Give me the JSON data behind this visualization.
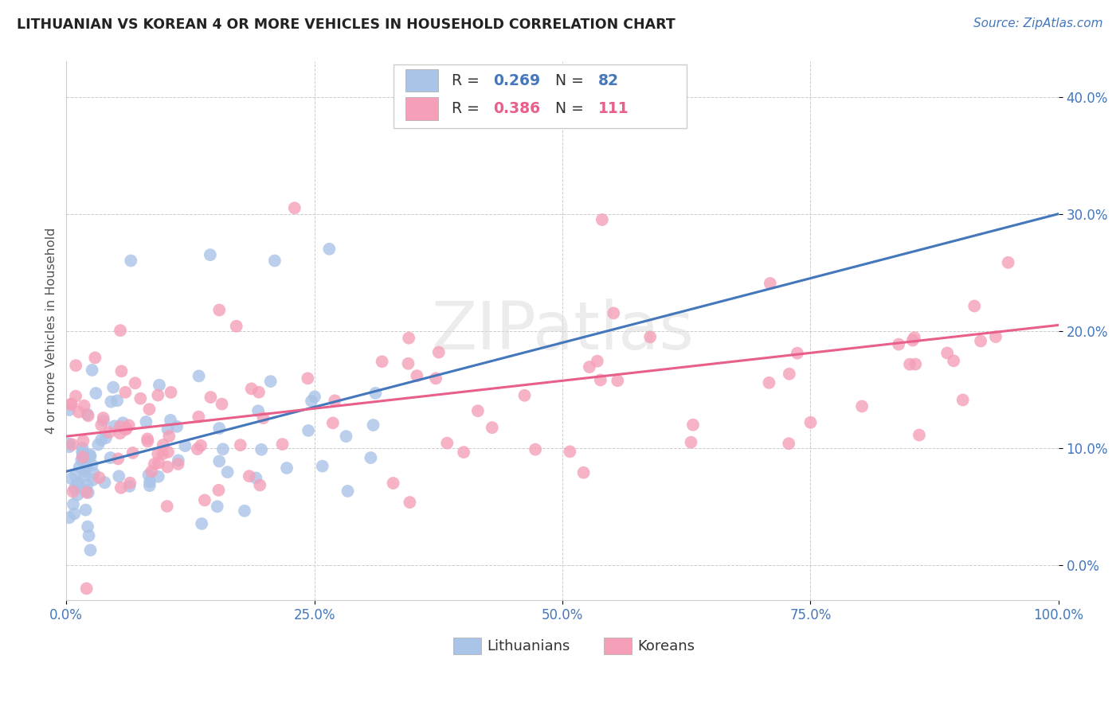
{
  "title": "LITHUANIAN VS KOREAN 4 OR MORE VEHICLES IN HOUSEHOLD CORRELATION CHART",
  "source": "Source: ZipAtlas.com",
  "ylabel": "4 or more Vehicles in Household",
  "xlim": [
    0.0,
    100.0
  ],
  "ylim": [
    -3.0,
    43.0
  ],
  "xtick_vals": [
    0,
    25,
    50,
    75,
    100
  ],
  "xtick_labels": [
    "0.0%",
    "25.0%",
    "50.0%",
    "75.0%",
    "100.0%"
  ],
  "ytick_vals": [
    0,
    10,
    20,
    30,
    40
  ],
  "ytick_labels": [
    "0.0%",
    "10.0%",
    "20.0%",
    "30.0%",
    "40.0%"
  ],
  "background_color": "#ffffff",
  "grid_color": "#cccccc",
  "title_color": "#222222",
  "source_color": "#4477bb",
  "axis_tick_color": "#4477bb",
  "ylabel_color": "#555555",
  "blue_line_color": "#4477bb",
  "pink_line_color": "#e8608a",
  "blue_dash_color": "#bbccdd",
  "blue_scatter_color": "#aac4e8",
  "pink_scatter_color": "#f5a0b8",
  "watermark_color": "#dddddd",
  "blue_line_x0": 0,
  "blue_line_y0": 8.0,
  "blue_line_x1": 100,
  "blue_line_y1": 30.0,
  "pink_line_x0": 0,
  "pink_line_y0": 11.0,
  "pink_line_x1": 100,
  "pink_line_y1": 20.5,
  "legend_R1": "0.269",
  "legend_N1": "82",
  "legend_R2": "0.386",
  "legend_N2": "111",
  "legend_color1": "#4477bb",
  "legend_color2": "#e8608a"
}
